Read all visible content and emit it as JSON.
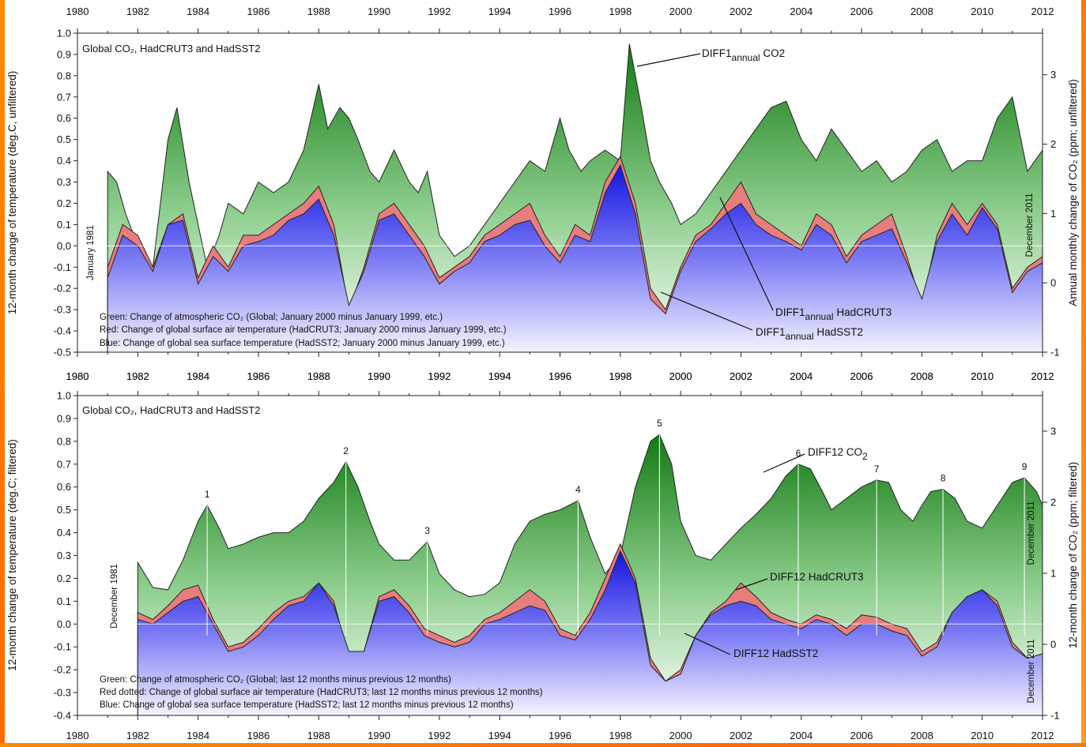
{
  "chart_data": [
    {
      "type": "area",
      "panel": "top",
      "title": "Global CO₂, HadCRUT3 and HadSST2",
      "xlabel": "",
      "ylabel": "12-month change of temperature (deg.C, unfiltered)",
      "y2label": "Annual monthly change of CO₂ (ppm; unfiltered)",
      "xlim": [
        1980,
        2012
      ],
      "ylim": [
        -0.5,
        1.0
      ],
      "y2lim": [
        -1,
        3.6
      ],
      "x_ticks": [
        "1980",
        "1982",
        "1984",
        "1986",
        "1988",
        "1990",
        "1992",
        "1994",
        "1996",
        "1998",
        "2000",
        "2002",
        "2004",
        "2006",
        "2008",
        "2010",
        "2012"
      ],
      "y_ticks": [
        "1.0",
        "0.9",
        "0.8",
        "0.7",
        "0.6",
        "0.5",
        "0.4",
        "0.3",
        "0.2",
        "0.1",
        "0.0",
        "-0.1",
        "-0.2",
        "-0.3",
        "-0.4",
        "-0.5"
      ],
      "y2_ticks": [
        "3",
        "2",
        "1",
        "0",
        "-1"
      ],
      "rotated_labels": {
        "start": "January 1981",
        "end": "December 2011"
      },
      "notes": [
        "Green: Change of atmospheric CO₂ (Global; January 2000 minus January 1999, etc.)",
        "Red: Change of global surface air temperature (HadCRUT3; January 2000 minus January 1999, etc.)",
        "Blue: Change of global sea surface temperature (HadSST2; January 2000 minus January 1999, etc.)"
      ],
      "series": [
        {
          "name": "DIFF1annual CO2",
          "color": "#1f8a1f",
          "x": [
            1981,
            1981.3,
            1981.6,
            1982,
            1982.5,
            1983,
            1983.3,
            1983.7,
            1984,
            1984.3,
            1984.7,
            1985,
            1985.5,
            1986,
            1986.5,
            1987,
            1987.5,
            1988,
            1988.3,
            1988.7,
            1989,
            1989.3,
            1989.7,
            1990,
            1990.5,
            1991,
            1991.3,
            1991.6,
            1992,
            1992.5,
            1993,
            1993.5,
            1994,
            1994.5,
            1995,
            1995.5,
            1996,
            1996.3,
            1996.7,
            1997,
            1997.5,
            1998,
            1998.3,
            1998.7,
            1999,
            1999.3,
            1999.7,
            2000,
            2000.5,
            2001,
            2001.5,
            2002,
            2002.5,
            2003,
            2003.5,
            2004,
            2004.5,
            2005,
            2005.5,
            2006,
            2006.5,
            2007,
            2007.5,
            2008,
            2008.5,
            2009,
            2009.5,
            2010,
            2010.5,
            2011,
            2011.5,
            2012
          ],
          "values": [
            0.35,
            0.3,
            0.15,
            0.0,
            -0.1,
            0.5,
            0.65,
            0.3,
            0.1,
            -0.1,
            0.05,
            0.2,
            0.15,
            0.3,
            0.25,
            0.3,
            0.45,
            0.76,
            0.55,
            0.65,
            0.6,
            0.5,
            0.35,
            0.3,
            0.45,
            0.3,
            0.25,
            0.35,
            0.05,
            -0.05,
            0.0,
            0.1,
            0.2,
            0.3,
            0.4,
            0.35,
            0.6,
            0.45,
            0.35,
            0.4,
            0.45,
            0.4,
            0.95,
            0.65,
            0.4,
            0.3,
            0.2,
            0.1,
            0.15,
            0.25,
            0.35,
            0.45,
            0.55,
            0.65,
            0.68,
            0.5,
            0.4,
            0.55,
            0.45,
            0.35,
            0.4,
            0.3,
            0.35,
            0.45,
            0.5,
            0.35,
            0.4,
            0.4,
            0.6,
            0.7,
            0.35,
            0.45
          ]
        },
        {
          "name": "DIFF1annual HadCRUT3",
          "color": "#e87d7d",
          "x": [
            1981,
            1981.5,
            1982,
            1982.5,
            1983,
            1983.5,
            1984,
            1984.5,
            1985,
            1985.5,
            1986,
            1986.5,
            1987,
            1987.5,
            1988,
            1988.5,
            1989,
            1989.5,
            1990,
            1990.5,
            1991,
            1991.5,
            1992,
            1992.5,
            1993,
            1993.5,
            1994,
            1994.5,
            1995,
            1995.5,
            1996,
            1996.5,
            1997,
            1997.5,
            1998,
            1998.5,
            1999,
            1999.5,
            2000,
            2000.5,
            2001,
            2001.5,
            2002,
            2002.5,
            2003,
            2003.5,
            2004,
            2004.5,
            2005,
            2005.5,
            2006,
            2006.5,
            2007,
            2007.5,
            2008,
            2008.5,
            2009,
            2009.5,
            2010,
            2010.5,
            2011,
            2011.5,
            2012
          ],
          "values": [
            -0.1,
            0.1,
            0.05,
            -0.1,
            0.1,
            0.15,
            -0.15,
            0.0,
            -0.1,
            0.05,
            0.05,
            0.1,
            0.15,
            0.2,
            0.28,
            0.1,
            -0.3,
            -0.1,
            0.15,
            0.2,
            0.1,
            0.0,
            -0.15,
            -0.1,
            -0.05,
            0.05,
            0.1,
            0.15,
            0.2,
            0.05,
            -0.05,
            0.1,
            0.05,
            0.3,
            0.42,
            0.2,
            -0.2,
            -0.3,
            -0.1,
            0.05,
            0.1,
            0.2,
            0.3,
            0.15,
            0.1,
            0.05,
            0.0,
            0.15,
            0.1,
            -0.05,
            0.05,
            0.1,
            0.15,
            -0.05,
            -0.28,
            0.05,
            0.2,
            0.1,
            0.2,
            0.1,
            -0.2,
            -0.1,
            -0.05
          ]
        },
        {
          "name": "DIFF1annual HadSST2",
          "color": "#2b2bea",
          "x": [
            1981,
            1981.5,
            1982,
            1982.5,
            1983,
            1983.5,
            1984,
            1984.5,
            1985,
            1985.5,
            1986,
            1986.5,
            1987,
            1987.5,
            1988,
            1988.5,
            1989,
            1989.5,
            1990,
            1990.5,
            1991,
            1991.5,
            1992,
            1992.5,
            1993,
            1993.5,
            1994,
            1994.5,
            1995,
            1995.5,
            1996,
            1996.5,
            1997,
            1997.5,
            1998,
            1998.5,
            1999,
            1999.5,
            2000,
            2000.5,
            2001,
            2001.5,
            2002,
            2002.5,
            2003,
            2003.5,
            2004,
            2004.5,
            2005,
            2005.5,
            2006,
            2006.5,
            2007,
            2007.5,
            2008,
            2008.5,
            2009,
            2009.5,
            2010,
            2010.5,
            2011,
            2011.5,
            2012
          ],
          "values": [
            -0.15,
            0.05,
            0.0,
            -0.12,
            0.1,
            0.12,
            -0.18,
            -0.05,
            -0.12,
            0.0,
            0.02,
            0.05,
            0.12,
            0.15,
            0.22,
            0.05,
            -0.28,
            -0.12,
            0.12,
            0.15,
            0.05,
            -0.05,
            -0.18,
            -0.12,
            -0.08,
            0.02,
            0.05,
            0.1,
            0.12,
            0.0,
            -0.08,
            0.05,
            0.02,
            0.25,
            0.38,
            0.15,
            -0.25,
            -0.32,
            -0.12,
            0.02,
            0.08,
            0.15,
            0.2,
            0.1,
            0.05,
            0.02,
            -0.02,
            0.1,
            0.05,
            -0.08,
            0.02,
            0.05,
            0.08,
            -0.08,
            -0.25,
            0.02,
            0.15,
            0.05,
            0.18,
            0.08,
            -0.22,
            -0.12,
            -0.08
          ]
        }
      ],
      "annotations": [
        {
          "text": "DIFF1",
          "sub": "annual",
          "tail": " CO2"
        },
        {
          "text": "DIFF1",
          "sub": "annual",
          "tail": " HadCRUT3"
        },
        {
          "text": "DIFF1",
          "sub": "annual",
          "tail": " HadSST2"
        }
      ]
    },
    {
      "type": "area",
      "panel": "bottom",
      "title": "Global CO₂, HadCRUT3 and HadSST2",
      "xlabel": "",
      "ylabel": "12-month change of temperature (deg.C; filtered)",
      "y2label": "12-month change of CO₂ (ppm; filtered)",
      "xlim": [
        1980,
        2012
      ],
      "ylim": [
        -0.4,
        1.0
      ],
      "y2lim": [
        -1,
        3.5
      ],
      "x_ticks": [
        "1980",
        "1982",
        "1984",
        "1986",
        "1988",
        "1990",
        "1992",
        "1994",
        "1996",
        "1998",
        "2000",
        "2002",
        "2004",
        "2006",
        "2008",
        "2010",
        "2012"
      ],
      "y_ticks": [
        "1.0",
        "0.9",
        "0.8",
        "0.7",
        "0.6",
        "0.5",
        "0.4",
        "0.3",
        "0.2",
        "0.1",
        "0.0",
        "-0.1",
        "-0.2",
        "-0.3",
        "-0.4"
      ],
      "y2_ticks": [
        "3",
        "2",
        "1",
        "0",
        "-1"
      ],
      "rotated_labels": {
        "start": "December 1981",
        "end": "December 2011",
        "end2": "December 2011"
      },
      "notes": [
        "Green: Change of atmospheric CO₂ (Global; last 12 months minus previous 12 months)",
        "Red dotted: Change of global surface air temperature (HadCRUT3; last 12 months minus previous 12 months)",
        "Blue: Change of global sea surface temperature (HadSST2; last 12 months minus previous 12 months)"
      ],
      "peaks": [
        {
          "label": "1",
          "x": 1984.3,
          "y": 0.52
        },
        {
          "label": "2",
          "x": 1988.9,
          "y": 0.71
        },
        {
          "label": "3",
          "x": 1991.6,
          "y": 0.36
        },
        {
          "label": "4",
          "x": 1996.6,
          "y": 0.54
        },
        {
          "label": "5",
          "x": 1999.3,
          "y": 0.83
        },
        {
          "label": "6",
          "x": 2003.9,
          "y": 0.7
        },
        {
          "label": "7",
          "x": 2006.5,
          "y": 0.63
        },
        {
          "label": "8",
          "x": 2008.7,
          "y": 0.59
        },
        {
          "label": "9",
          "x": 2011.4,
          "y": 0.64
        }
      ],
      "series": [
        {
          "name": "DIFF12 CO2",
          "color": "#1f8a1f",
          "x": [
            1982,
            1982.5,
            1983,
            1983.5,
            1984,
            1984.3,
            1984.7,
            1985,
            1985.5,
            1986,
            1986.5,
            1987,
            1987.5,
            1988,
            1988.5,
            1988.9,
            1989.3,
            1989.7,
            1990,
            1990.5,
            1991,
            1991.6,
            1992,
            1992.5,
            1993,
            1993.5,
            1994,
            1994.5,
            1995,
            1995.5,
            1996,
            1996.6,
            1997,
            1997.5,
            1998,
            1998.5,
            1999,
            1999.3,
            1999.7,
            2000,
            2000.5,
            2001,
            2001.5,
            2002,
            2002.5,
            2003,
            2003.5,
            2003.9,
            2004.3,
            2004.7,
            2005,
            2005.5,
            2006,
            2006.5,
            2006.9,
            2007.3,
            2007.7,
            2008,
            2008.3,
            2008.7,
            2009.1,
            2009.5,
            2010,
            2010.5,
            2011,
            2011.4,
            2011.8,
            2012
          ],
          "values": [
            0.27,
            0.16,
            0.15,
            0.28,
            0.45,
            0.52,
            0.42,
            0.33,
            0.35,
            0.38,
            0.4,
            0.4,
            0.45,
            0.55,
            0.62,
            0.71,
            0.6,
            0.45,
            0.35,
            0.28,
            0.28,
            0.36,
            0.22,
            0.15,
            0.12,
            0.13,
            0.18,
            0.35,
            0.45,
            0.48,
            0.5,
            0.54,
            0.38,
            0.22,
            0.3,
            0.6,
            0.8,
            0.83,
            0.7,
            0.45,
            0.3,
            0.28,
            0.35,
            0.42,
            0.48,
            0.55,
            0.65,
            0.7,
            0.68,
            0.58,
            0.5,
            0.55,
            0.6,
            0.63,
            0.62,
            0.5,
            0.45,
            0.52,
            0.58,
            0.59,
            0.55,
            0.45,
            0.42,
            0.52,
            0.62,
            0.64,
            0.58,
            0.52
          ]
        },
        {
          "name": "DIFF12 HadCRUT3",
          "color": "#e87d7d",
          "x": [
            1982,
            1982.5,
            1983,
            1983.5,
            1984,
            1984.5,
            1985,
            1985.5,
            1986,
            1986.5,
            1987,
            1987.5,
            1988,
            1988.5,
            1989,
            1989.5,
            1990,
            1990.5,
            1991,
            1991.5,
            1992,
            1992.5,
            1993,
            1993.5,
            1994,
            1994.5,
            1995,
            1995.5,
            1996,
            1996.5,
            1997,
            1997.5,
            1998,
            1998.5,
            1999,
            1999.5,
            2000,
            2000.5,
            2001,
            2001.5,
            2002,
            2002.5,
            2003,
            2003.5,
            2004,
            2004.5,
            2005,
            2005.5,
            2006,
            2006.5,
            2007,
            2007.5,
            2008,
            2008.5,
            2009,
            2009.5,
            2010,
            2010.5,
            2011,
            2011.5,
            2012
          ],
          "values": [
            0.05,
            0.02,
            0.08,
            0.15,
            0.17,
            0.02,
            -0.1,
            -0.08,
            -0.02,
            0.05,
            0.1,
            0.12,
            0.18,
            0.1,
            -0.15,
            -0.12,
            0.12,
            0.15,
            0.08,
            -0.02,
            -0.05,
            -0.08,
            -0.05,
            0.02,
            0.05,
            0.1,
            0.15,
            0.1,
            -0.02,
            -0.05,
            0.05,
            0.2,
            0.35,
            0.2,
            -0.15,
            -0.25,
            -0.2,
            -0.05,
            0.05,
            0.1,
            0.18,
            0.12,
            0.05,
            0.02,
            0.0,
            0.04,
            0.02,
            -0.02,
            0.04,
            0.03,
            0.0,
            -0.02,
            -0.12,
            -0.08,
            0.05,
            0.12,
            0.15,
            0.1,
            -0.08,
            -0.15,
            -0.13
          ]
        },
        {
          "name": "DIFF12 HadSST2",
          "color": "#2b2bea",
          "x": [
            1982,
            1982.5,
            1983,
            1983.5,
            1984,
            1984.5,
            1985,
            1985.5,
            1986,
            1986.5,
            1987,
            1987.5,
            1988,
            1988.5,
            1989,
            1989.5,
            1990,
            1990.5,
            1991,
            1991.5,
            1992,
            1992.5,
            1993,
            1993.5,
            1994,
            1994.5,
            1995,
            1995.5,
            1996,
            1996.5,
            1997,
            1997.5,
            1998,
            1998.5,
            1999,
            1999.5,
            2000,
            2000.5,
            2001,
            2001.5,
            2002,
            2002.5,
            2003,
            2003.5,
            2004,
            2004.5,
            2005,
            2005.5,
            2006,
            2006.5,
            2007,
            2007.5,
            2008,
            2008.5,
            2009,
            2009.5,
            2010,
            2010.5,
            2011,
            2011.5,
            2012
          ],
          "values": [
            0.02,
            0.0,
            0.05,
            0.1,
            0.12,
            0.0,
            -0.12,
            -0.1,
            -0.05,
            0.02,
            0.08,
            0.1,
            0.18,
            0.08,
            -0.12,
            -0.12,
            0.1,
            0.12,
            0.05,
            -0.05,
            -0.08,
            -0.1,
            -0.08,
            0.0,
            0.02,
            0.05,
            0.08,
            0.06,
            -0.05,
            -0.07,
            0.02,
            0.15,
            0.32,
            0.18,
            -0.18,
            -0.25,
            -0.22,
            -0.05,
            0.04,
            0.08,
            0.1,
            0.08,
            0.02,
            0.0,
            -0.02,
            0.02,
            0.0,
            -0.05,
            0.0,
            0.0,
            -0.03,
            -0.05,
            -0.14,
            -0.1,
            0.05,
            0.12,
            0.15,
            0.08,
            -0.1,
            -0.15,
            -0.13
          ]
        }
      ],
      "annotations": [
        {
          "text": "DIFF12 CO",
          "sub": "2",
          "tail": ""
        },
        {
          "text": "DIFF12 HadCRUT3",
          "sub": "",
          "tail": ""
        },
        {
          "text": "DIFF12 HadSST2",
          "sub": "",
          "tail": ""
        }
      ]
    }
  ]
}
